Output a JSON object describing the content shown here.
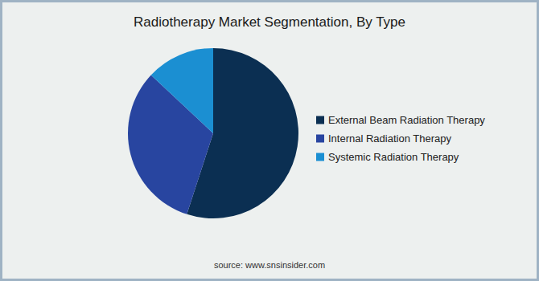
{
  "chart_data": {
    "type": "pie",
    "title": "Radiotherapy Market Segmentation, By Type",
    "source": "source: www.snsinsider.com",
    "categories": [
      "External Beam Radiation Therapy",
      "Internal Radiation Therapy",
      "Systemic Radiation Therapy"
    ],
    "values": [
      55,
      32,
      13
    ],
    "colors": [
      "#0b2f52",
      "#2845a0",
      "#1b8fd2"
    ],
    "legend": "right",
    "data_labels": false
  }
}
